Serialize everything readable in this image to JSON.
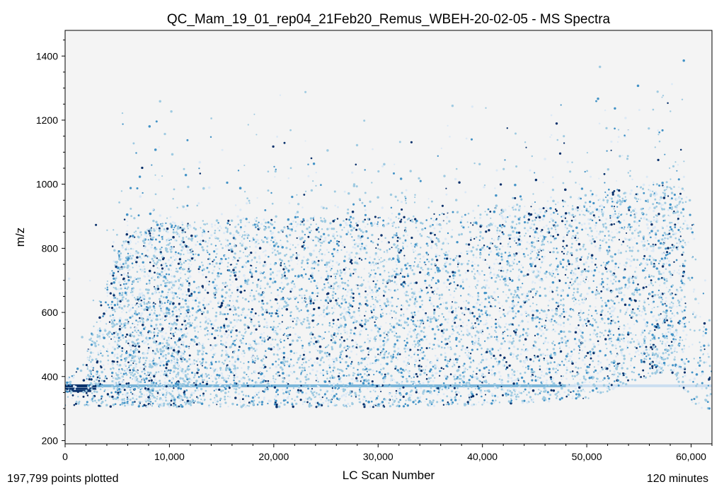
{
  "chart_data": {
    "type": "scatter",
    "title": "QC_Mam_19_01_rep04_21Feb20_Remus_WBEH-20-02-05 - MS Spectra",
    "xlabel": "LC Scan Number",
    "ylabel": "m/z",
    "xlim": [
      0,
      62000
    ],
    "ylim": [
      190,
      1480
    ],
    "x_ticks": [
      0,
      10000,
      20000,
      30000,
      40000,
      50000,
      60000
    ],
    "x_tick_labels": [
      "0",
      "10,000",
      "20,000",
      "30,000",
      "40,000",
      "50,000",
      "60,000"
    ],
    "y_ticks": [
      200,
      400,
      600,
      800,
      1000,
      1200,
      1400
    ],
    "y_tick_labels": [
      "200",
      "400",
      "600",
      "800",
      "1000",
      "1200",
      "1400"
    ],
    "grid": false,
    "background": "#f4f4f4",
    "color_scale": [
      "#dbe9f6",
      "#9ecae1",
      "#4292c6",
      "#08306b"
    ],
    "bands": [
      {
        "mz": 371,
        "x_start": 0,
        "x_end": 62000
      },
      {
        "mz": 362,
        "x_start": 0,
        "x_end": 3000
      },
      {
        "mz": 355,
        "x_start": 0,
        "x_end": 2500
      }
    ],
    "density_profile": {
      "scan": [
        0,
        2000,
        4000,
        6000,
        10000,
        20000,
        30000,
        40000,
        50000,
        55000,
        58000,
        60000,
        62000
      ],
      "mz_low": [
        310,
        310,
        305,
        305,
        305,
        305,
        305,
        310,
        330,
        390,
        420,
        300,
        300
      ],
      "mz_high": [
        380,
        480,
        700,
        860,
        880,
        900,
        900,
        920,
        970,
        1000,
        1000,
        980,
        420
      ]
    }
  },
  "footer": {
    "left": "197,799 points plotted",
    "right": "120 minutes"
  }
}
